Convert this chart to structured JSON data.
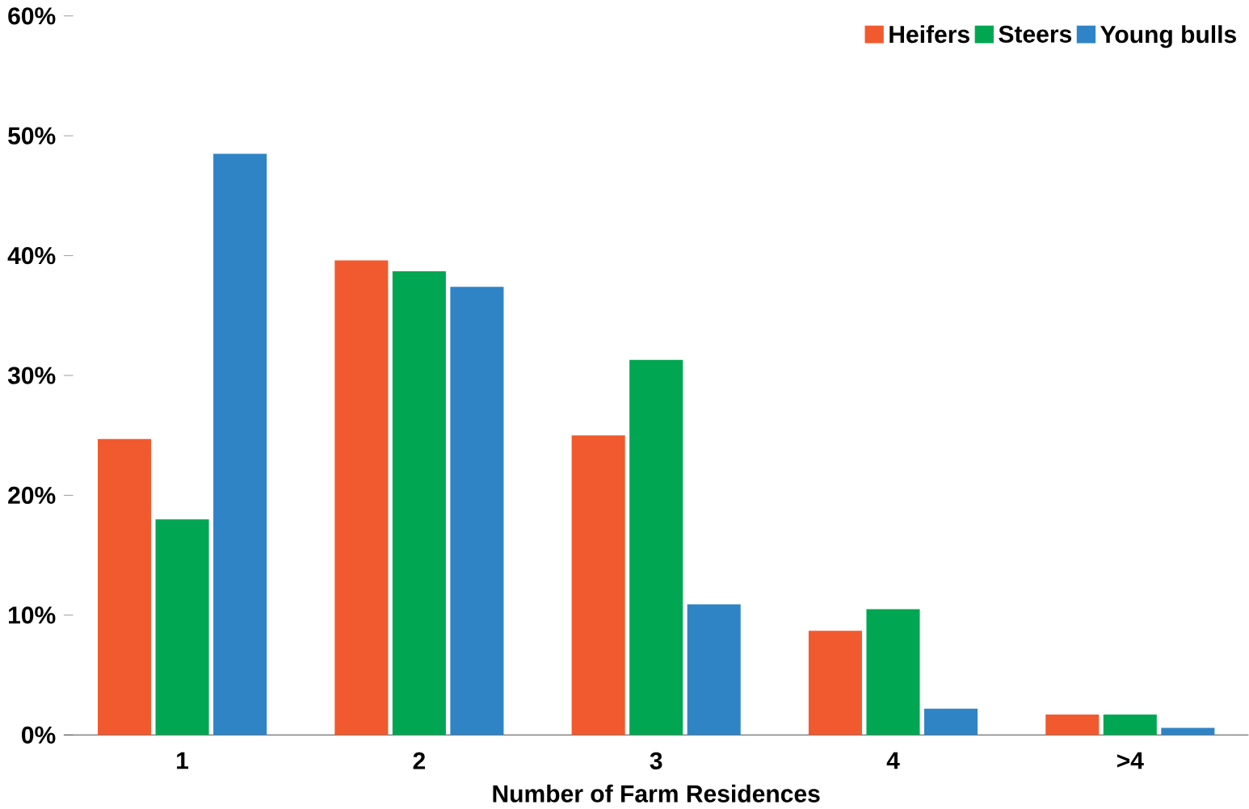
{
  "chart_data": {
    "type": "bar",
    "xlabel": "Number of Farm Residences",
    "categories": [
      "1",
      "2",
      "3",
      "4",
      ">4"
    ],
    "series": [
      {
        "name": "Heifers",
        "color": "#f15a2f",
        "values": [
          24.7,
          39.6,
          25.0,
          8.7,
          1.7
        ]
      },
      {
        "name": "Steers",
        "color": "#00a651",
        "values": [
          18.0,
          38.7,
          31.3,
          10.5,
          1.7
        ]
      },
      {
        "name": "Young bulls",
        "color": "#2f84c6",
        "values": [
          48.5,
          37.4,
          10.9,
          2.2,
          0.6
        ]
      }
    ],
    "ylim": [
      0,
      60
    ],
    "yticks": [
      {
        "value": 0,
        "label": "0%"
      },
      {
        "value": 10,
        "label": "10%"
      },
      {
        "value": 20,
        "label": "20%"
      },
      {
        "value": 30,
        "label": "30%"
      },
      {
        "value": 40,
        "label": "40%"
      },
      {
        "value": 50,
        "label": "50%"
      },
      {
        "value": 60,
        "label": "60%"
      }
    ],
    "grid": false,
    "legend": "top right"
  }
}
